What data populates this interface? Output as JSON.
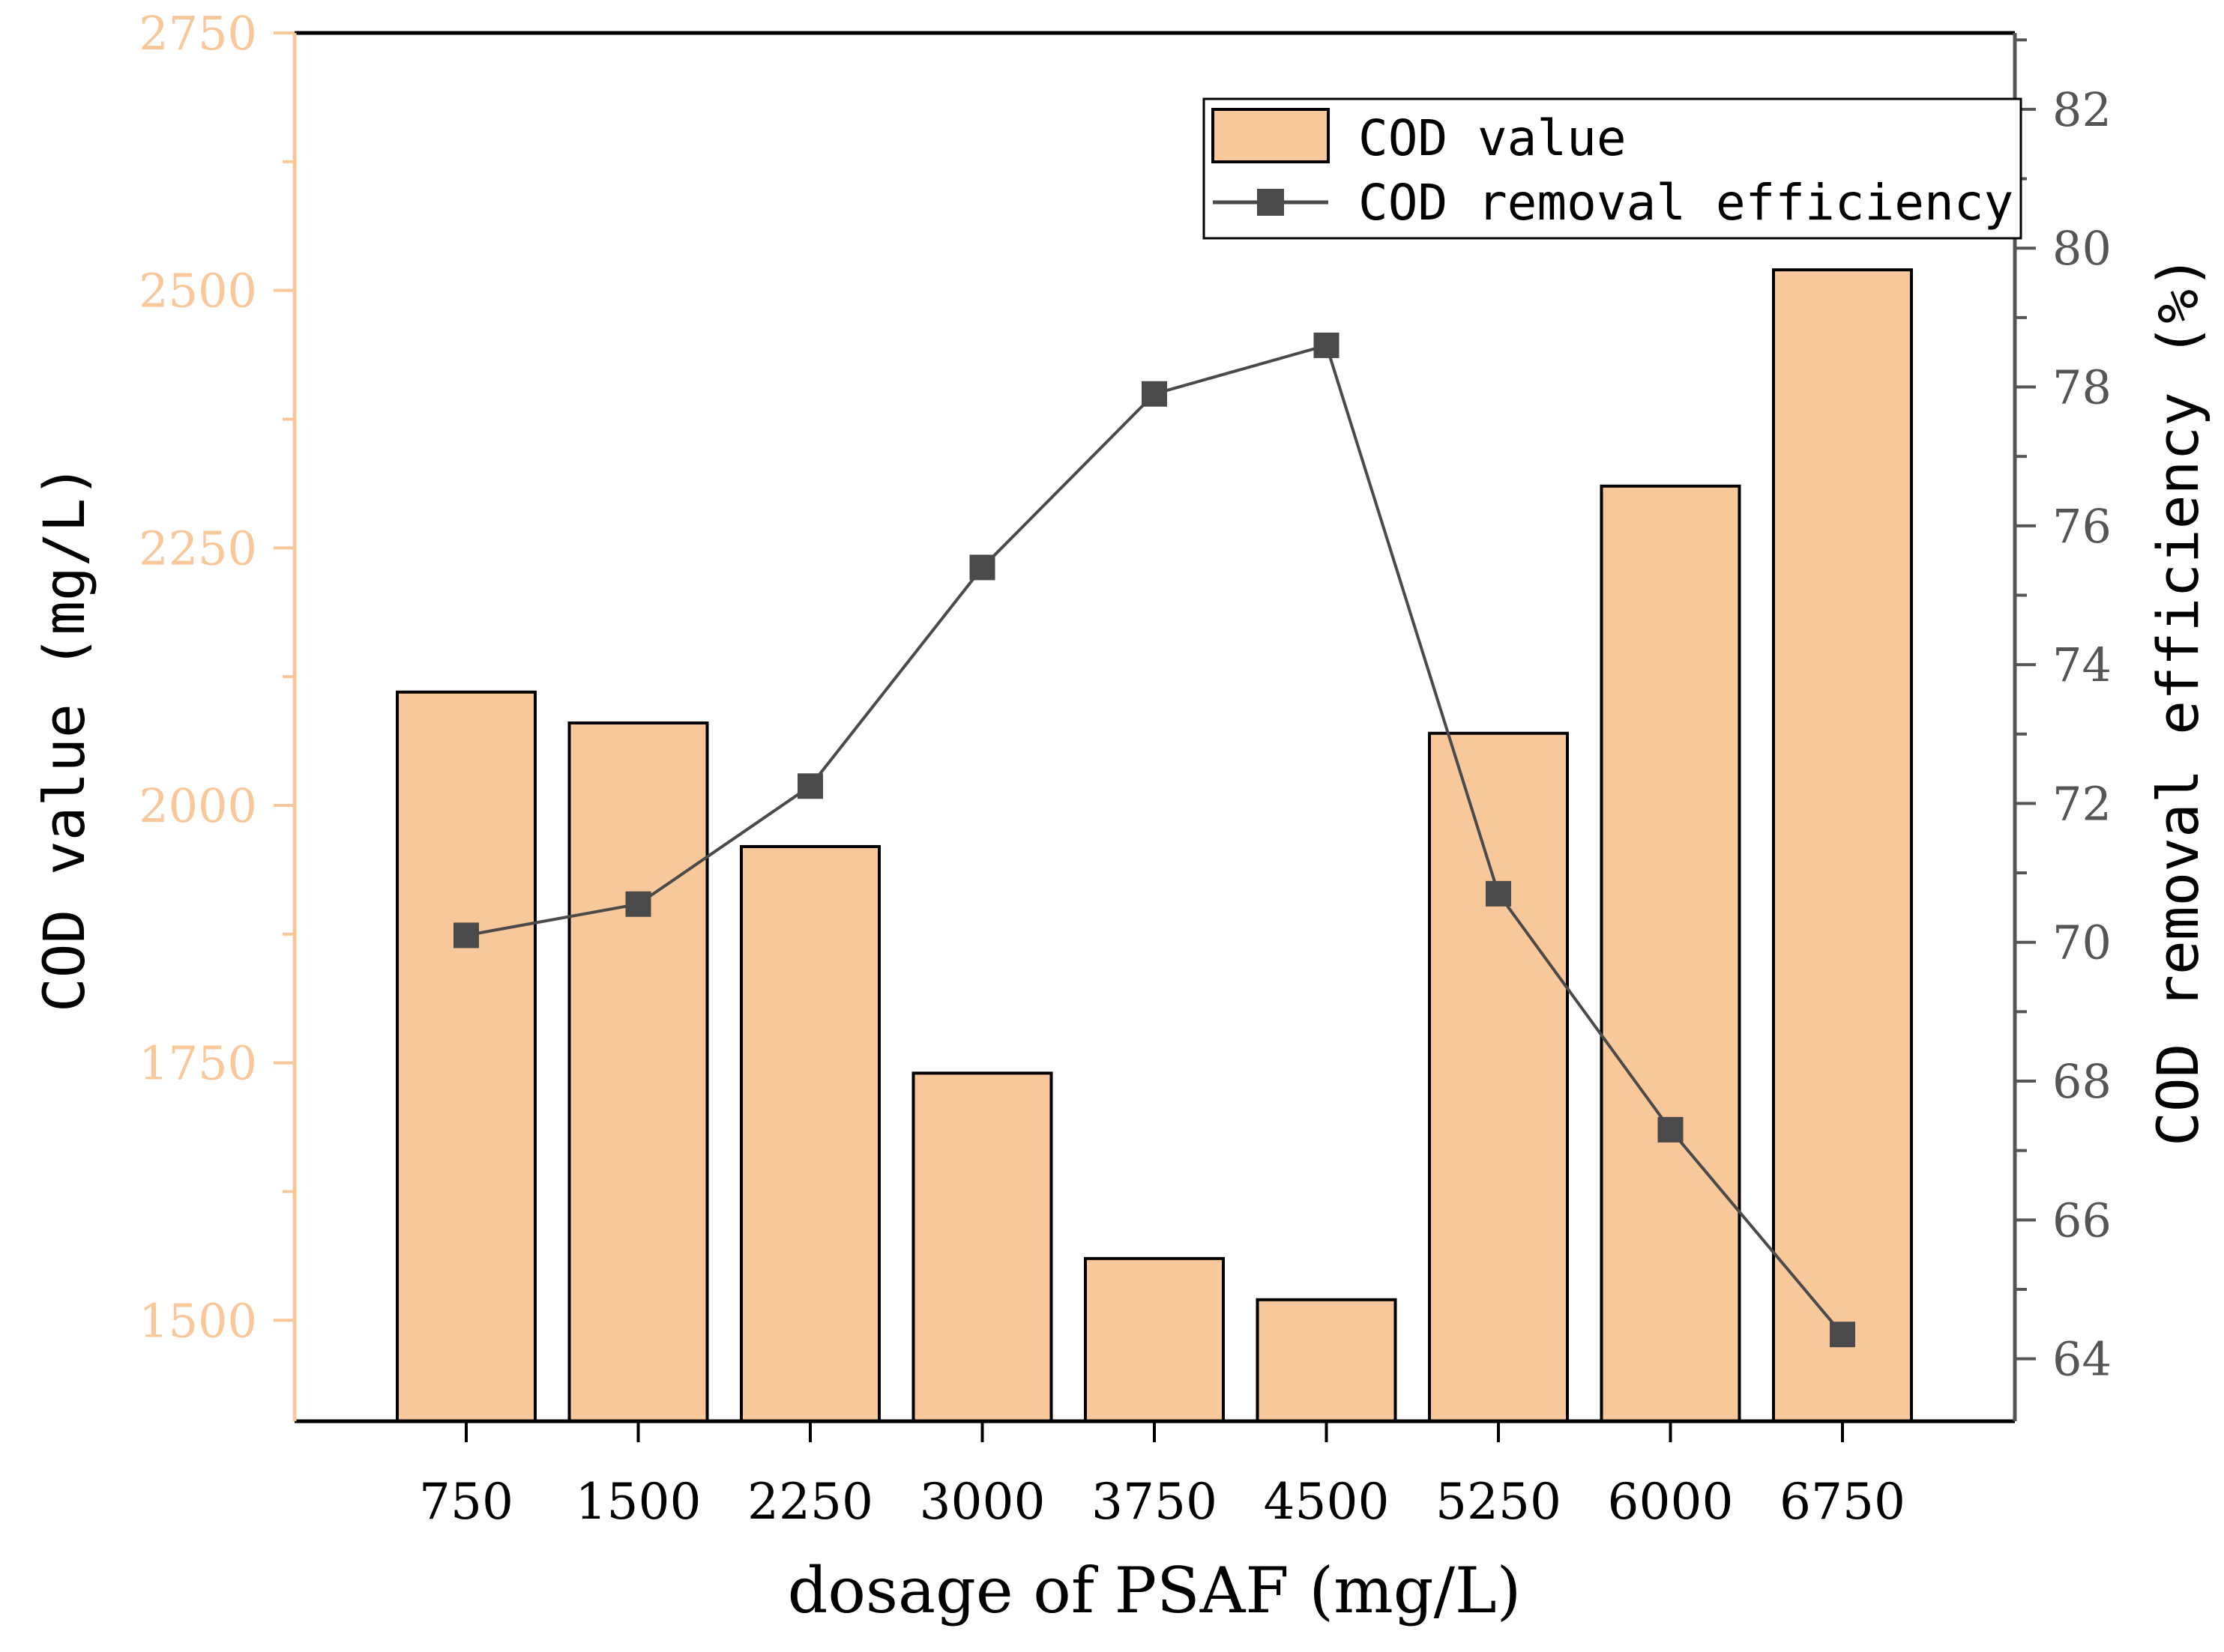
{
  "chart_data": {
    "type": "bar",
    "categories": [
      "750",
      "1500",
      "2250",
      "3000",
      "3750",
      "4500",
      "5250",
      "6000",
      "6750"
    ],
    "xlabel": "dosage of PSAF (mg/L)",
    "series": [
      {
        "name": "COD value",
        "type": "bar",
        "axis": "left",
        "values": [
          2110,
          2080,
          1960,
          1740,
          1560,
          1520,
          2070,
          2310,
          2520
        ]
      },
      {
        "name": "COD removal efficiency",
        "type": "line",
        "axis": "right",
        "values": [
          70.1,
          70.55,
          72.25,
          75.4,
          77.9,
          78.6,
          70.7,
          67.3,
          64.35
        ]
      }
    ],
    "y_left": {
      "label": "COD value (mg/L)",
      "range": [
        1402,
        2750
      ],
      "ticks": [
        "1500",
        "1750",
        "2000",
        "2250",
        "2500",
        "2750"
      ]
    },
    "y_right": {
      "label": "COD removal efficiency (%)",
      "range": [
        63.1,
        83.1
      ],
      "ticks": [
        "64",
        "66",
        "68",
        "70",
        "72",
        "74",
        "76",
        "78",
        "80",
        "82"
      ]
    },
    "legend": {
      "position": "top-right"
    },
    "colors": {
      "bar_fill": "#F9C89A",
      "left_axis": "#F9C89A",
      "line": "#4A4A4A",
      "right_axis": "#555555",
      "frame": "#000000"
    },
    "grid": false
  }
}
